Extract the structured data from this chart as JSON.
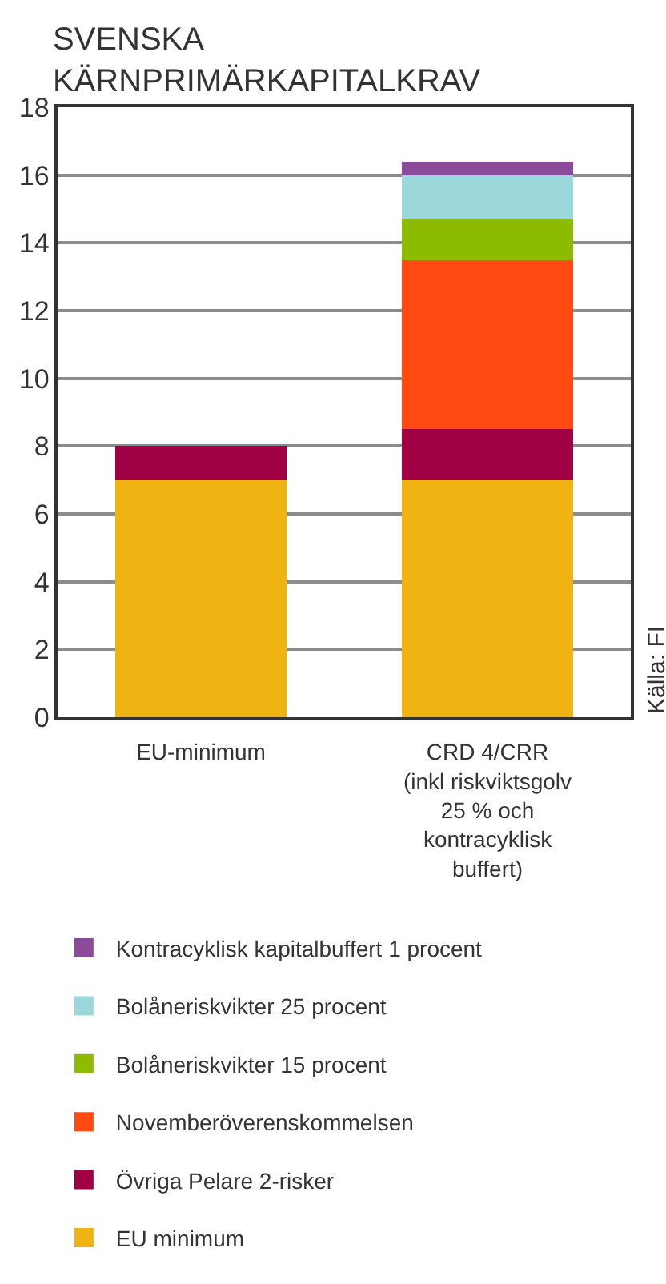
{
  "chart_data": {
    "type": "bar",
    "stacked": true,
    "title": "SVENSKA\nKÄRNPRIMÄRKAPITALKRAV",
    "categories": [
      "EU-minimum",
      "CRD 4/CRR\n(inkl riskviktsgolv\n25 % och\nkontracyklisk\nbuffert)"
    ],
    "series": [
      {
        "name": "EU minimum",
        "color": "#efb314",
        "values": [
          7,
          7
        ]
      },
      {
        "name": "Övriga Pelare 2-risker",
        "color": "#a10045",
        "values": [
          1,
          1.5
        ]
      },
      {
        "name": "Novemberöverenskommelsen",
        "color": "#ff4a12",
        "values": [
          0,
          5
        ]
      },
      {
        "name": "Bolåneriskvikter 15 procent",
        "color": "#8dbb00",
        "values": [
          0,
          1.2
        ]
      },
      {
        "name": "Bolåneriskvikter 25 procent",
        "color": "#9bd7db",
        "values": [
          0,
          1.3
        ]
      },
      {
        "name": "Kontracyklisk kapitalbuffert 1 procent",
        "color": "#8b4a9a",
        "values": [
          0,
          0.4
        ]
      }
    ],
    "ylim": [
      0,
      18
    ],
    "yticks": [
      0,
      2,
      4,
      6,
      8,
      10,
      12,
      14,
      16,
      18
    ],
    "grid": "y",
    "legend": "bottom",
    "annotations": [
      "Källa: FI"
    ]
  }
}
